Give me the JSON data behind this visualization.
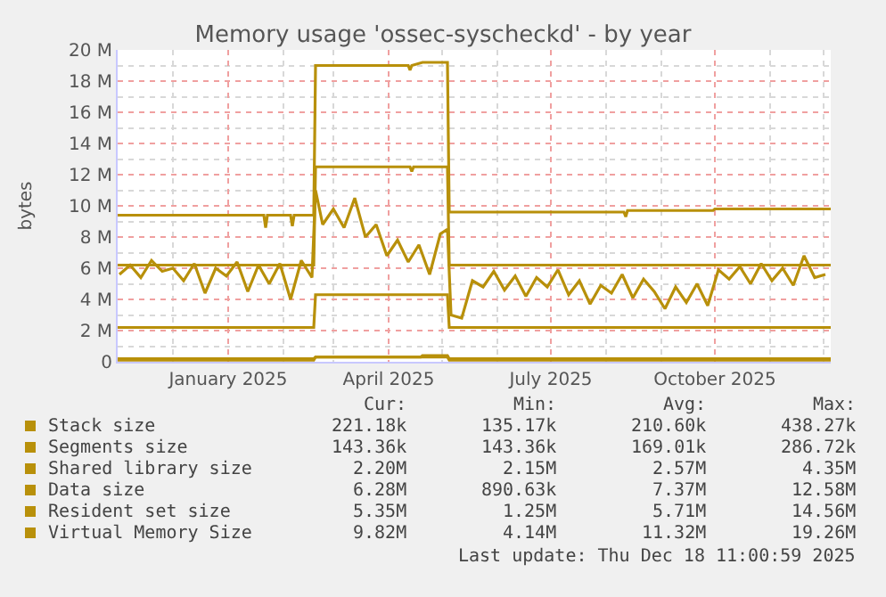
{
  "chart_data": {
    "type": "line",
    "title": "Memory usage 'ossec-syscheckd' - by year",
    "ylabel": "bytes",
    "xlim": [
      "2024-10-31",
      "2025-12-05"
    ],
    "xticks": [
      {
        "value": "2025-01-01",
        "label": "January 2025"
      },
      {
        "value": "2025-04-01",
        "label": "April 2025"
      },
      {
        "value": "2025-07-01",
        "label": "July 2025"
      },
      {
        "value": "2025-10-01",
        "label": "October 2025"
      }
    ],
    "ylim": [
      0,
      20
    ],
    "yticks": [
      {
        "value": 0,
        "label": "0"
      },
      {
        "value": 2,
        "label": "2 M"
      },
      {
        "value": 4,
        "label": "4 M"
      },
      {
        "value": 6,
        "label": "6 M"
      },
      {
        "value": 8,
        "label": "8 M"
      },
      {
        "value": 10,
        "label": "10 M"
      },
      {
        "value": 12,
        "label": "12 M"
      },
      {
        "value": 14,
        "label": "14 M"
      },
      {
        "value": 16,
        "label": "16 M"
      },
      {
        "value": 18,
        "label": "18 M"
      },
      {
        "value": 20,
        "label": "20 M"
      }
    ],
    "grid": true,
    "legend": "bottom",
    "marker": "none",
    "line_style": "solid",
    "series": [
      {
        "name": "Stack size",
        "color": "#b8900a",
        "x": [
          "2024-10-31",
          "2025-02-18",
          "2025-02-19",
          "2025-04-19",
          "2025-04-20",
          "2025-05-04",
          "2025-05-05",
          "2025-12-05"
        ],
        "values": [
          0.2,
          0.2,
          0.3,
          0.3,
          0.4,
          0.4,
          0.2,
          0.2
        ]
      },
      {
        "name": "Segments size",
        "color": "#b8900a",
        "x": [
          "2024-10-31",
          "2025-02-18",
          "2025-02-19",
          "2025-05-04",
          "2025-05-05",
          "2025-12-05"
        ],
        "values": [
          0.1,
          0.1,
          0.3,
          0.3,
          0.1,
          0.1
        ]
      },
      {
        "name": "Shared library size",
        "color": "#b8900a",
        "x": [
          "2024-10-31",
          "2025-02-18",
          "2025-02-19",
          "2025-05-04",
          "2025-05-05",
          "2025-12-05"
        ],
        "values": [
          2.2,
          2.2,
          4.3,
          4.3,
          2.2,
          2.2
        ]
      },
      {
        "name": "Data size",
        "color": "#b8900a",
        "x": [
          "2024-10-31",
          "2025-02-18",
          "2025-02-19",
          "2025-04-13",
          "2025-04-14",
          "2025-04-15",
          "2025-05-04",
          "2025-05-05",
          "2025-12-05"
        ],
        "values": [
          6.2,
          6.2,
          12.5,
          12.5,
          12.2,
          12.5,
          12.5,
          6.2,
          6.2
        ]
      },
      {
        "name": "Resident set size",
        "color": "#b8900a",
        "x": [
          "2024-11-01",
          "2024-11-07",
          "2024-11-13",
          "2024-11-19",
          "2024-11-25",
          "2024-12-01",
          "2024-12-07",
          "2024-12-13",
          "2024-12-19",
          "2024-12-25",
          "2024-12-31",
          "2025-01-06",
          "2025-01-12",
          "2025-01-18",
          "2025-01-24",
          "2025-01-30",
          "2025-02-05",
          "2025-02-11",
          "2025-02-17",
          "2025-02-19",
          "2025-02-23",
          "2025-03-01",
          "2025-03-07",
          "2025-03-13",
          "2025-03-19",
          "2025-03-25",
          "2025-03-31",
          "2025-04-06",
          "2025-04-12",
          "2025-04-18",
          "2025-04-24",
          "2025-04-30",
          "2025-05-04",
          "2025-05-06",
          "2025-05-12",
          "2025-05-18",
          "2025-05-24",
          "2025-05-30",
          "2025-06-05",
          "2025-06-11",
          "2025-06-17",
          "2025-06-23",
          "2025-06-29",
          "2025-07-05",
          "2025-07-11",
          "2025-07-17",
          "2025-07-23",
          "2025-07-29",
          "2025-08-04",
          "2025-08-10",
          "2025-08-16",
          "2025-08-22",
          "2025-08-28",
          "2025-09-03",
          "2025-09-09",
          "2025-09-15",
          "2025-09-21",
          "2025-09-27",
          "2025-10-03",
          "2025-10-09",
          "2025-10-15",
          "2025-10-21",
          "2025-10-27",
          "2025-11-02",
          "2025-11-08",
          "2025-11-14",
          "2025-11-20",
          "2025-11-26",
          "2025-12-02"
        ],
        "values": [
          5.6,
          6.2,
          5.4,
          6.5,
          5.8,
          6.0,
          5.2,
          6.3,
          4.4,
          6.0,
          5.5,
          6.4,
          4.5,
          6.2,
          5.0,
          6.3,
          4.0,
          6.5,
          5.4,
          11.0,
          8.8,
          9.8,
          8.6,
          10.5,
          8.0,
          8.8,
          6.8,
          7.8,
          6.4,
          7.5,
          5.6,
          8.2,
          8.5,
          3.0,
          2.8,
          5.2,
          4.8,
          5.8,
          4.6,
          5.5,
          4.2,
          5.4,
          4.8,
          5.9,
          4.3,
          5.2,
          3.7,
          4.9,
          4.4,
          5.6,
          4.1,
          5.3,
          4.5,
          3.4,
          4.8,
          3.8,
          5.0,
          3.6,
          5.9,
          5.3,
          6.1,
          5.0,
          6.3,
          5.2,
          6.0,
          4.9,
          6.8,
          5.4,
          5.6
        ]
      },
      {
        "name": "Virtual Memory Size",
        "color": "#b8900a",
        "x": [
          "2024-10-31",
          "2025-01-21",
          "2025-01-22",
          "2025-01-23",
          "2025-02-05",
          "2025-02-06",
          "2025-02-07",
          "2025-02-18",
          "2025-02-19",
          "2025-04-12",
          "2025-04-13",
          "2025-04-14",
          "2025-04-20",
          "2025-05-04",
          "2025-05-05",
          "2025-08-11",
          "2025-08-12",
          "2025-08-13",
          "2025-09-30",
          "2025-10-01",
          "2025-12-05"
        ],
        "values": [
          9.4,
          9.4,
          8.6,
          9.4,
          9.4,
          8.7,
          9.4,
          9.4,
          19.0,
          19.0,
          18.7,
          19.0,
          19.2,
          19.2,
          9.6,
          9.6,
          9.3,
          9.7,
          9.7,
          9.8,
          9.8
        ]
      }
    ],
    "annotations": [
      "Cur:",
      "Min:",
      "Avg:",
      "Max:",
      "221.18k",
      "135.17k",
      "210.60k",
      "438.27k",
      "143.36k",
      "143.36k",
      "169.01k",
      "286.72k",
      "2.20M",
      "2.15M",
      "2.57M",
      "4.35M",
      "6.28M",
      "890.63k",
      "7.37M",
      "12.58M",
      "5.35M",
      "1.25M",
      "5.71M",
      "14.56M",
      "9.82M",
      "4.14M",
      "11.32M",
      "19.26M",
      "Last update: Thu Dec 18 11:00:59 2025"
    ]
  }
}
